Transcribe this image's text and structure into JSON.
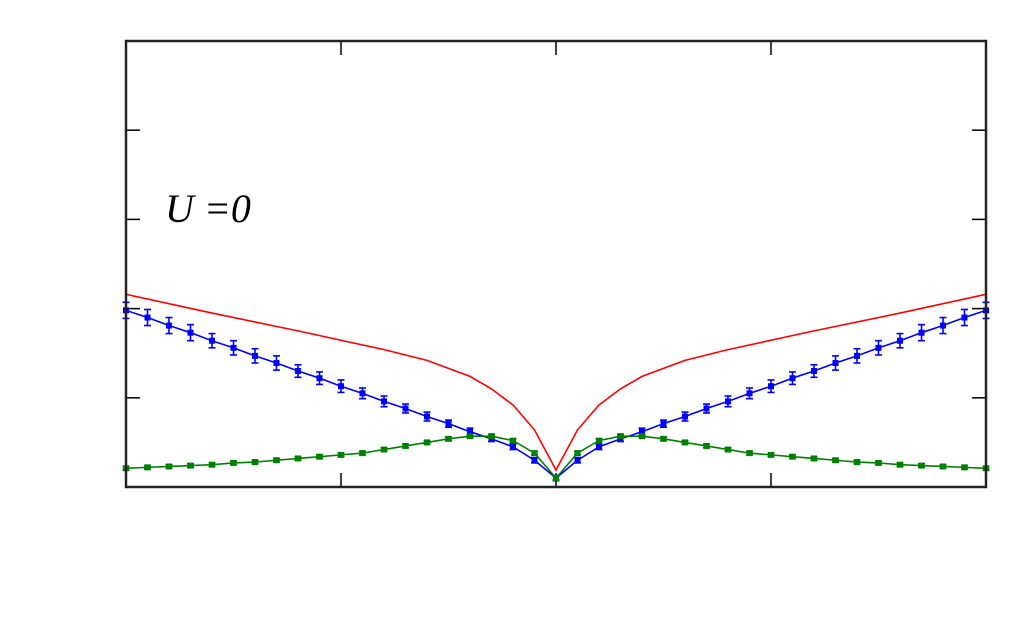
{
  "chart_data": {
    "type": "line",
    "annotation": "U =0",
    "xlim": [
      -1,
      1
    ],
    "xticks": [
      -0.5,
      0,
      0.5
    ],
    "ylim": [
      0,
      5
    ],
    "yticks": [
      1,
      2,
      3,
      4
    ],
    "x": [
      -1,
      -0.95,
      -0.9,
      -0.85,
      -0.8,
      -0.75,
      -0.7,
      -0.65,
      -0.6,
      -0.55,
      -0.5,
      -0.45,
      -0.4,
      -0.35,
      -0.3,
      -0.25,
      -0.2,
      -0.15,
      -0.1,
      -0.05,
      0,
      0.05,
      0.1,
      0.15,
      0.2,
      0.25,
      0.3,
      0.35,
      0.4,
      0.45,
      0.5,
      0.55,
      0.6,
      0.65,
      0.7,
      0.75,
      0.8,
      0.85,
      0.9,
      0.95,
      1
    ],
    "series": [
      {
        "color": "#ff0000",
        "x": [
          -1,
          -0.8,
          -0.6,
          -0.4,
          -0.3,
          -0.2,
          -0.15,
          -0.1,
          -0.05,
          0,
          0.05,
          0.1,
          0.15,
          0.2,
          0.3,
          0.4,
          0.6,
          0.8,
          1
        ],
        "values": [
          2.16,
          1.95,
          1.75,
          1.54,
          1.42,
          1.24,
          1.1,
          0.92,
          0.64,
          0.19,
          0.64,
          0.92,
          1.1,
          1.24,
          1.42,
          1.54,
          1.75,
          1.95,
          2.16
        ]
      },
      {
        "color": "#0000ff",
        "values": [
          1.98,
          1.9,
          1.81,
          1.73,
          1.64,
          1.56,
          1.47,
          1.39,
          1.3,
          1.22,
          1.13,
          1.05,
          0.96,
          0.88,
          0.79,
          0.71,
          0.62,
          0.54,
          0.45,
          0.3,
          0.1,
          0.3,
          0.45,
          0.54,
          0.62,
          0.71,
          0.79,
          0.88,
          0.96,
          1.05,
          1.13,
          1.22,
          1.3,
          1.39,
          1.47,
          1.56,
          1.64,
          1.73,
          1.81,
          1.9,
          1.98
        ],
        "errors": [
          0.09,
          0.09,
          0.09,
          0.09,
          0.08,
          0.08,
          0.08,
          0.08,
          0.07,
          0.07,
          0.07,
          0.06,
          0.06,
          0.05,
          0.05,
          0.04,
          0.04,
          0.03,
          0.03,
          0.03,
          0.03,
          0.03,
          0.03,
          0.03,
          0.04,
          0.04,
          0.05,
          0.05,
          0.06,
          0.06,
          0.07,
          0.07,
          0.07,
          0.08,
          0.08,
          0.08,
          0.08,
          0.09,
          0.09,
          0.09,
          0.09
        ]
      },
      {
        "color": "#008000",
        "values": [
          0.21,
          0.22,
          0.23,
          0.24,
          0.25,
          0.27,
          0.28,
          0.3,
          0.32,
          0.34,
          0.36,
          0.38,
          0.42,
          0.46,
          0.5,
          0.54,
          0.57,
          0.57,
          0.52,
          0.38,
          0.1,
          0.38,
          0.52,
          0.57,
          0.57,
          0.54,
          0.5,
          0.46,
          0.42,
          0.38,
          0.36,
          0.34,
          0.32,
          0.3,
          0.28,
          0.27,
          0.25,
          0.24,
          0.23,
          0.22,
          0.21
        ],
        "errors": [
          0.02,
          0.02,
          0.02,
          0.02,
          0.02,
          0.02,
          0.02,
          0.02,
          0.02,
          0.02,
          0.02,
          0.02,
          0.02,
          0.02,
          0.02,
          0.02,
          0.02,
          0.02,
          0.02,
          0.02,
          0.02,
          0.02,
          0.02,
          0.02,
          0.02,
          0.02,
          0.02,
          0.02,
          0.02,
          0.02,
          0.02,
          0.02,
          0.02,
          0.02,
          0.02,
          0.02,
          0.02,
          0.02,
          0.02,
          0.02,
          0.02
        ]
      }
    ]
  }
}
